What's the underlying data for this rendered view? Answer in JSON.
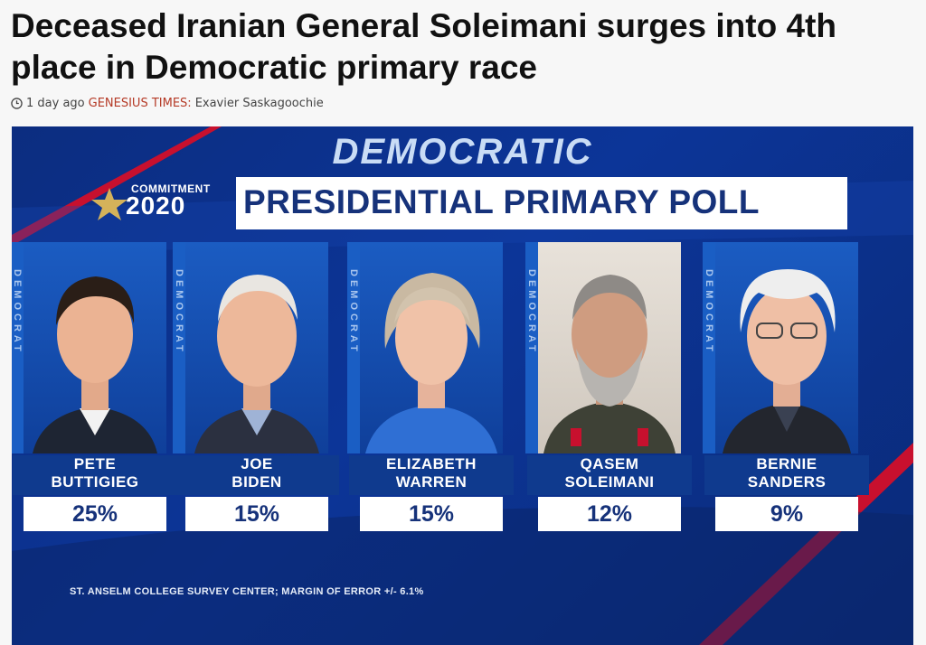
{
  "article": {
    "headline": "Deceased Iranian General Soleimani surges into 4th place in Democratic primary race",
    "time_ago": "1 day ago",
    "source": "GENESIUS TIMES:",
    "author": "Exavier Saskagoochie",
    "icon": "clock-icon"
  },
  "graphic": {
    "top_title": "DEMOCRATIC",
    "commitment_label": "COMMITMENT",
    "commitment_year": "2020",
    "poll_title": "PRESIDENTIAL PRIMARY POLL",
    "side_label": "DEMOCRAT",
    "footer": "ST. ANSELM COLLEGE SURVEY CENTER; MARGIN OF ERROR +/- 6.1%",
    "colors": {
      "navy": "#0c3598",
      "red": "#c8102e",
      "text_blue": "#16327a"
    },
    "candidates": [
      {
        "first": "PETE",
        "last": "BUTTIGIEG",
        "pct": "25%"
      },
      {
        "first": "JOE",
        "last": "BIDEN",
        "pct": "15%"
      },
      {
        "first": "ELIZABETH",
        "last": "WARREN",
        "pct": "15%"
      },
      {
        "first": "QASEM",
        "last": "SOLEIMANI",
        "pct": "12%"
      },
      {
        "first": "BERNIE",
        "last": "SANDERS",
        "pct": "9%"
      }
    ]
  }
}
